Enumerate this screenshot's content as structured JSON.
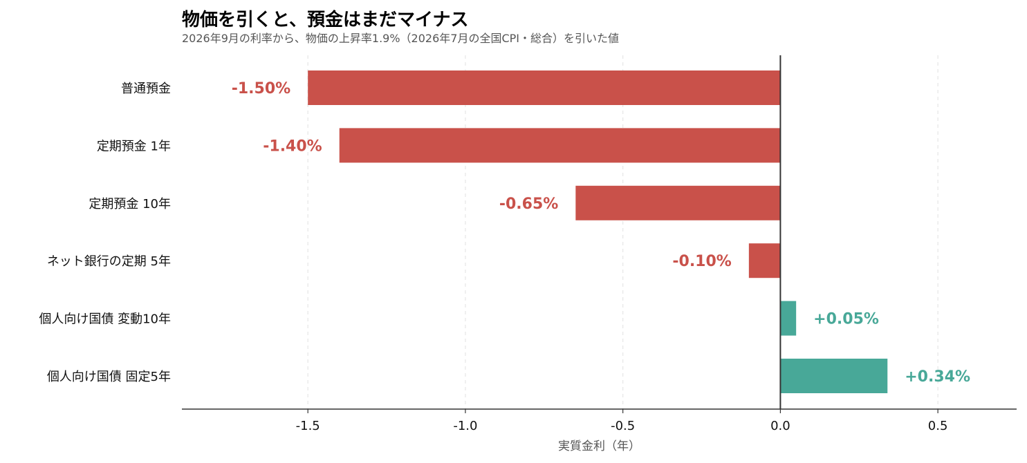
{
  "chart_data": {
    "type": "bar",
    "orientation": "horizontal",
    "title": "物価を引くと、預金はまだマイナス",
    "subtitle": "2026年9月の利率から、物価の上昇率1.9%（2026年7月の全国CPI・総合）を引いた値",
    "xlabel": "実質金利（年）",
    "ylabel": "",
    "xlim": [
      -1.9,
      0.75
    ],
    "xticks": [
      -1.5,
      -1.0,
      -0.5,
      0.0,
      0.5
    ],
    "xtick_labels": [
      "-1.5",
      "-1.0",
      "-0.5",
      "0.0",
      "0.5"
    ],
    "grid": "vertical dashed",
    "categories": [
      "普通預金",
      "定期預金 1年",
      "定期預金 10年",
      "ネット銀行の定期 5年",
      "個人向け国債 変動10年",
      "個人向け国債 固定5年"
    ],
    "values": [
      -1.5,
      -1.4,
      -0.65,
      -0.1,
      0.05,
      0.34
    ],
    "value_labels": [
      "-1.50%",
      "-1.40%",
      "-0.65%",
      "-0.10%",
      "+0.05%",
      "+0.34%"
    ],
    "colors": {
      "negative": "#c9514a",
      "positive": "#48a898",
      "zero_line": "#333333",
      "grid": "#e6e6e6",
      "axis": "#333333"
    }
  }
}
